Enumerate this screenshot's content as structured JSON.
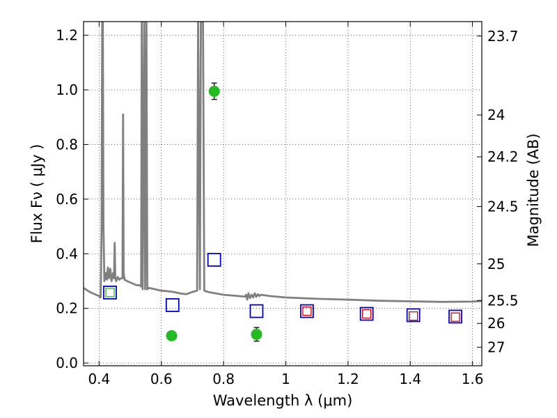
{
  "chart_data": {
    "type": "scatter",
    "xlabel": "Wavelength  λ (μm)",
    "ylabel": "Flux  Fν  ( μJy )",
    "y2label": "Magnitude (AB)",
    "xlim": [
      0.35,
      1.63
    ],
    "ylim": [
      -0.01,
      1.25
    ],
    "grid": true,
    "x_ticks": [
      0.4,
      0.6,
      0.8,
      1.0,
      1.2,
      1.4,
      1.6
    ],
    "x_tick_labels": [
      "0.4",
      "0.6",
      "0.8",
      "1",
      "1.2",
      "1.4",
      "1.6"
    ],
    "y_ticks": [
      0.0,
      0.2,
      0.4,
      0.6,
      0.8,
      1.0,
      1.2
    ],
    "y_tick_labels": [
      "0.0",
      "0.2",
      "0.4",
      "0.6",
      "0.8",
      "1.0",
      "1.2"
    ],
    "y2_ticks": [
      {
        "label": "23.7",
        "flux": 1.197
      },
      {
        "label": "24",
        "flux": 0.908
      },
      {
        "label": "24.2",
        "flux": 0.755
      },
      {
        "label": "24.5",
        "flux": 0.573
      },
      {
        "label": "25",
        "flux": 0.363
      },
      {
        "label": "25.5",
        "flux": 0.229
      },
      {
        "label": "26",
        "flux": 0.145
      },
      {
        "label": "27",
        "flux": 0.058
      }
    ],
    "model_spectrum": {
      "color": "#808080",
      "points": [
        [
          0.35,
          0.275
        ],
        [
          0.37,
          0.26
        ],
        [
          0.39,
          0.25
        ],
        [
          0.4,
          0.245
        ],
        [
          0.405,
          0.24
        ],
        [
          0.408,
          0.5
        ],
        [
          0.41,
          1.25
        ],
        [
          0.412,
          1.25
        ],
        [
          0.414,
          0.5
        ],
        [
          0.417,
          0.3
        ],
        [
          0.422,
          0.33
        ],
        [
          0.425,
          0.305
        ],
        [
          0.428,
          0.35
        ],
        [
          0.432,
          0.31
        ],
        [
          0.436,
          0.345
        ],
        [
          0.44,
          0.3
        ],
        [
          0.445,
          0.33
        ],
        [
          0.448,
          0.31
        ],
        [
          0.45,
          0.44
        ],
        [
          0.452,
          0.31
        ],
        [
          0.455,
          0.3
        ],
        [
          0.46,
          0.315
        ],
        [
          0.465,
          0.305
        ],
        [
          0.47,
          0.31
        ],
        [
          0.475,
          0.31
        ],
        [
          0.477,
          0.91
        ],
        [
          0.479,
          0.33
        ],
        [
          0.482,
          0.305
        ],
        [
          0.49,
          0.3
        ],
        [
          0.5,
          0.295
        ],
        [
          0.51,
          0.29
        ],
        [
          0.52,
          0.285
        ],
        [
          0.53,
          0.285
        ],
        [
          0.535,
          0.28
        ],
        [
          0.537,
          1.25
        ],
        [
          0.54,
          0.27
        ],
        [
          0.545,
          1.25
        ],
        [
          0.548,
          0.27
        ],
        [
          0.552,
          1.25
        ],
        [
          0.555,
          0.27
        ],
        [
          0.56,
          0.275
        ],
        [
          0.58,
          0.27
        ],
        [
          0.6,
          0.265
        ],
        [
          0.62,
          0.263
        ],
        [
          0.64,
          0.26
        ],
        [
          0.66,
          0.255
        ],
        [
          0.68,
          0.252
        ],
        [
          0.7,
          0.26
        ],
        [
          0.715,
          0.265
        ],
        [
          0.718,
          1.25
        ],
        [
          0.724,
          0.27
        ],
        [
          0.727,
          1.25
        ],
        [
          0.734,
          1.25
        ],
        [
          0.738,
          0.265
        ],
        [
          0.75,
          0.26
        ],
        [
          0.8,
          0.25
        ],
        [
          0.85,
          0.245
        ],
        [
          0.87,
          0.243
        ],
        [
          0.872,
          0.25
        ],
        [
          0.876,
          0.232
        ],
        [
          0.88,
          0.255
        ],
        [
          0.885,
          0.238
        ],
        [
          0.89,
          0.25
        ],
        [
          0.895,
          0.24
        ],
        [
          0.9,
          0.255
        ],
        [
          0.905,
          0.242
        ],
        [
          0.91,
          0.252
        ],
        [
          0.915,
          0.245
        ],
        [
          0.92,
          0.25
        ],
        [
          0.95,
          0.245
        ],
        [
          1.0,
          0.24
        ],
        [
          1.1,
          0.235
        ],
        [
          1.2,
          0.232
        ],
        [
          1.3,
          0.228
        ],
        [
          1.4,
          0.226
        ],
        [
          1.5,
          0.224
        ],
        [
          1.6,
          0.225
        ],
        [
          1.63,
          0.227
        ]
      ]
    },
    "series": [
      {
        "marker": "circle-filled",
        "color": "#22bb22",
        "points": [
          {
            "x": 0.633,
            "y": 0.1,
            "yerr": 0.012
          },
          {
            "x": 0.77,
            "y": 0.995,
            "yerr": 0.03
          },
          {
            "x": 0.906,
            "y": 0.105,
            "yerr": 0.025
          }
        ]
      },
      {
        "marker": "square-open",
        "color": "#0000cc",
        "points": [
          {
            "x": 0.435,
            "y": 0.258
          },
          {
            "x": 0.636,
            "y": 0.212
          },
          {
            "x": 0.77,
            "y": 0.378
          },
          {
            "x": 0.906,
            "y": 0.19
          },
          {
            "x": 1.068,
            "y": 0.19
          },
          {
            "x": 1.26,
            "y": 0.18
          },
          {
            "x": 1.41,
            "y": 0.175
          },
          {
            "x": 1.545,
            "y": 0.17
          }
        ]
      },
      {
        "marker": "square-open-small",
        "color": "#cc0000",
        "points": [
          {
            "x": 1.068,
            "y": 0.19
          },
          {
            "x": 1.26,
            "y": 0.18
          },
          {
            "x": 1.41,
            "y": 0.172
          },
          {
            "x": 1.545,
            "y": 0.168
          }
        ]
      },
      {
        "marker": "square-open-small",
        "color": "#22bb22",
        "points": [
          {
            "x": 0.435,
            "y": 0.258
          }
        ]
      }
    ]
  }
}
